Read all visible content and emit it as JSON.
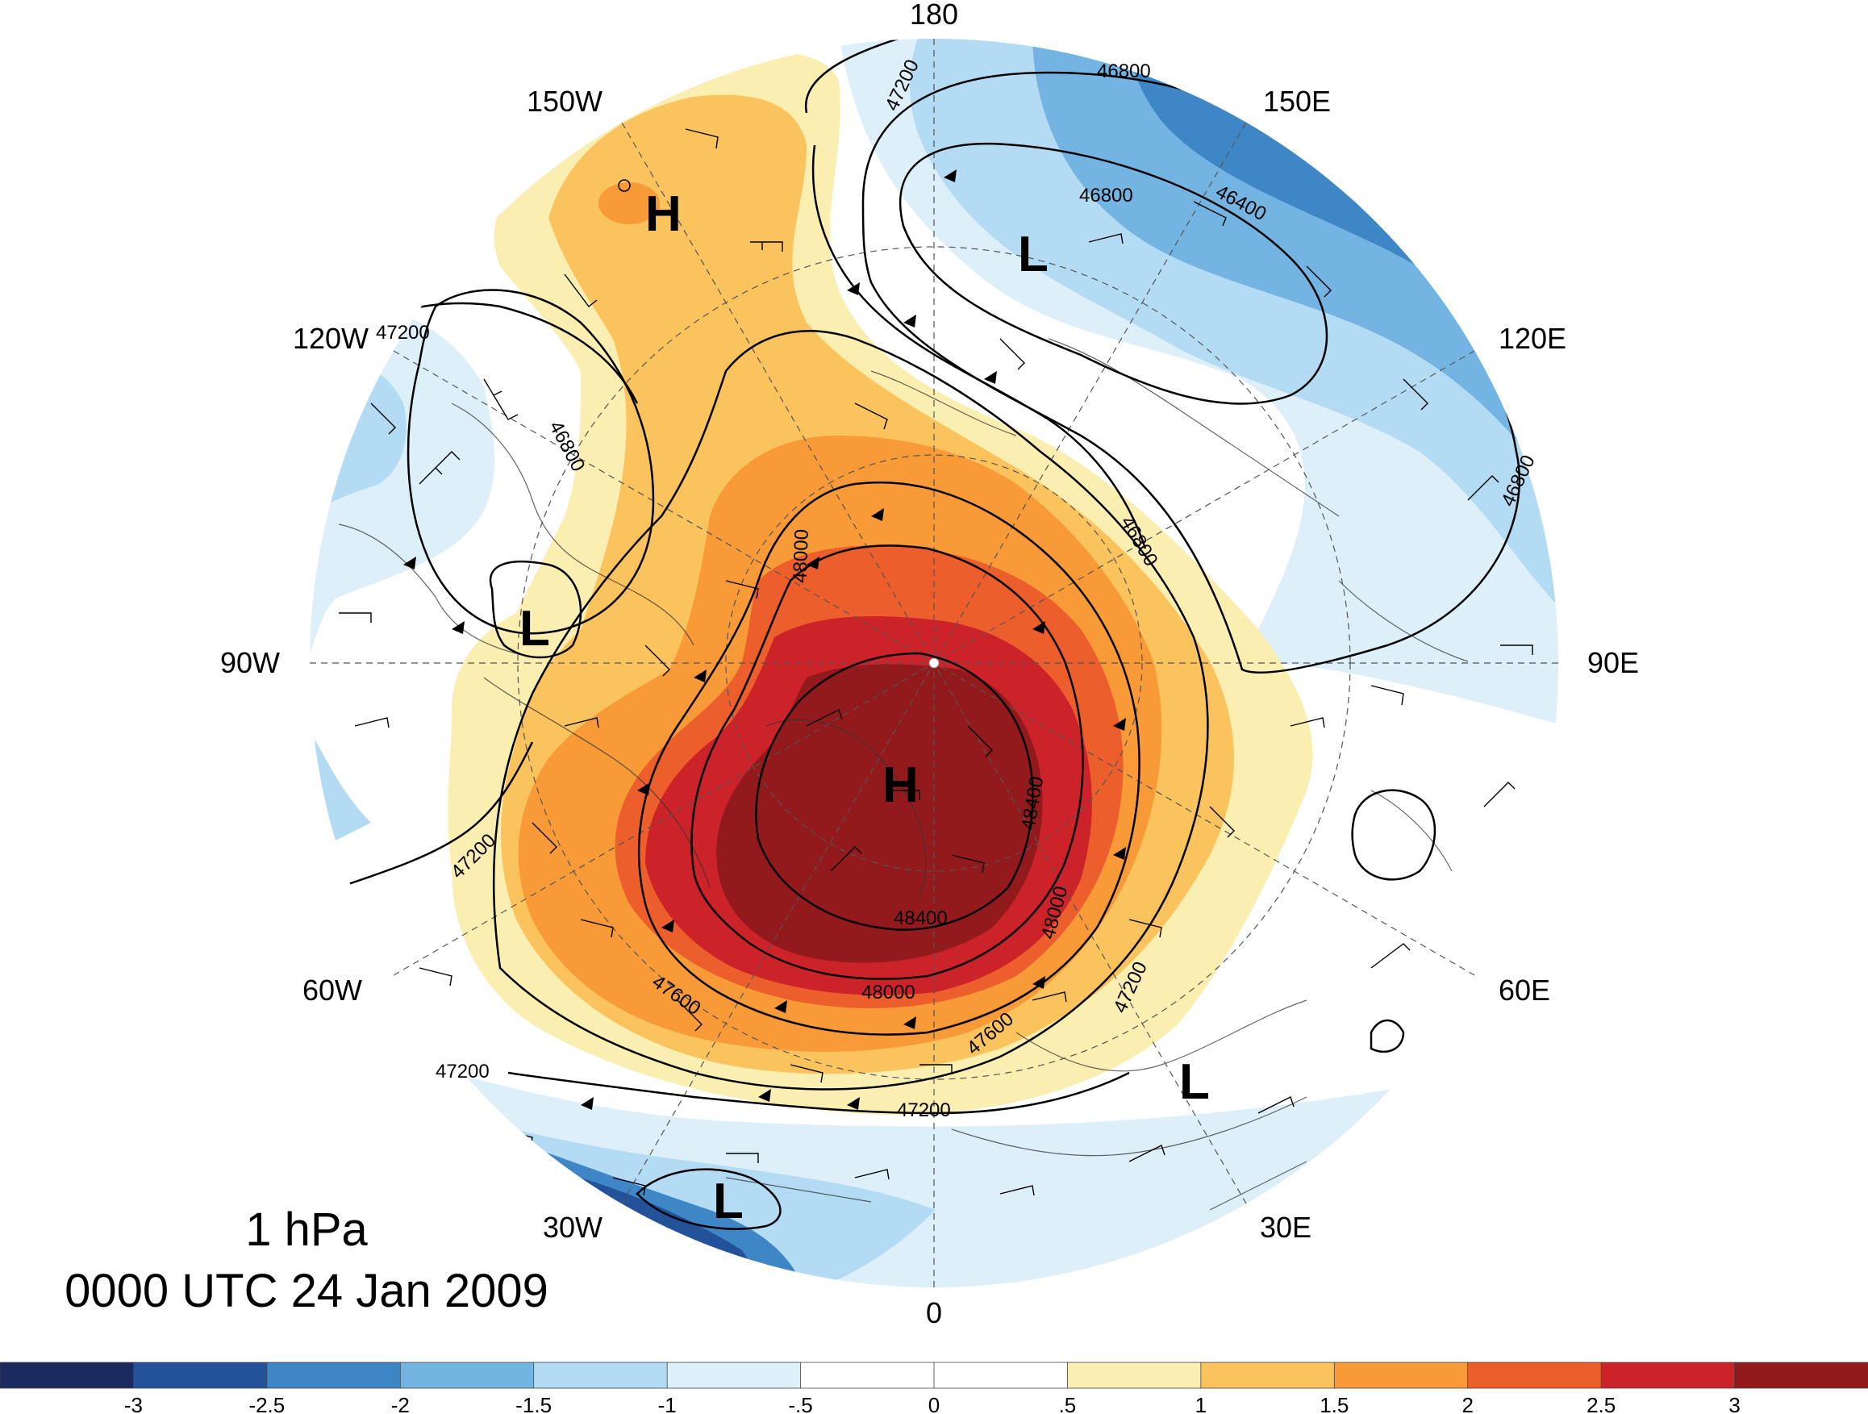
{
  "title": {
    "level": "1 hPa",
    "time": "0000 UTC 24 Jan 2009"
  },
  "longitude_labels": [
    "180",
    "150E",
    "120E",
    "90E",
    "60E",
    "30E",
    "0",
    "30W",
    "60W",
    "90W",
    "120W",
    "150W"
  ],
  "contour_labels": [
    "46800",
    "47200",
    "46400",
    "46800",
    "47200",
    "46800",
    "46800",
    "46800",
    "48000",
    "48400",
    "48400",
    "48000",
    "48000",
    "47600",
    "47600",
    "47200",
    "47200",
    "47200",
    "47200"
  ],
  "pressure_centers": [
    {
      "type": "H",
      "label": "H"
    },
    {
      "type": "L",
      "label": "L"
    },
    {
      "type": "L",
      "label": "L"
    },
    {
      "type": "H",
      "label": "H"
    },
    {
      "type": "L",
      "label": "L"
    },
    {
      "type": "L",
      "label": "L"
    }
  ],
  "colorbar": {
    "ticks": [
      "-3",
      "-2.5",
      "-2",
      "-1.5",
      "-1",
      "-.5",
      "0",
      ".5",
      "1",
      "1.5",
      "2",
      "2.5",
      "3"
    ],
    "colors": [
      "#1b2a5e",
      "#23529b",
      "#3f86c6",
      "#74b4e2",
      "#b3dbf3",
      "#ddeff9",
      "#ffffff",
      "#ffffff",
      "#fbeeb1",
      "#fbc35d",
      "#f89a38",
      "#ec5e2b",
      "#cc2229",
      "#921a1c"
    ]
  }
}
